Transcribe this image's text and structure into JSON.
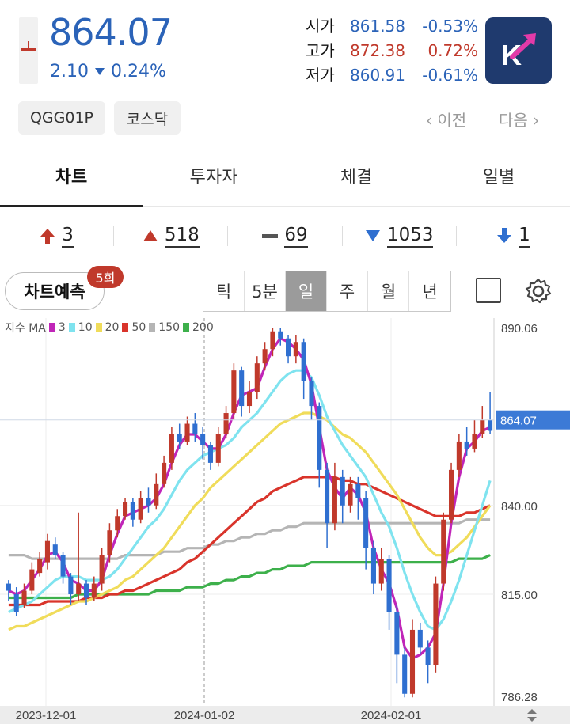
{
  "quote": {
    "price": "864.07",
    "change": "2.10",
    "change_pct": "0.24%",
    "open_label": "시가",
    "open": "861.58",
    "open_pct": "-0.53%",
    "high_label": "고가",
    "high": "872.38",
    "high_pct": "0.72%",
    "low_label": "저가",
    "low": "860.91",
    "low_pct": "-0.61%",
    "logo_letter": "K"
  },
  "tags": {
    "code": "QGG01P",
    "market": "코스닥"
  },
  "nav": {
    "prev": "이전",
    "next": "다음"
  },
  "tabs": [
    "차트",
    "투자자",
    "체결",
    "일별"
  ],
  "stats": {
    "upper_limit": "3",
    "rising": "518",
    "unchanged": "69",
    "falling": "1053",
    "lower_limit": "1"
  },
  "toolbar": {
    "predict_label": "차트예측",
    "predict_badge": "5회",
    "periods": [
      "틱",
      "5분",
      "일",
      "주",
      "월",
      "년"
    ],
    "active_period": "일"
  },
  "legend": {
    "title": "지수 MA",
    "items": [
      {
        "label": "3",
        "color": "#c025b8"
      },
      {
        "label": "10",
        "color": "#7fe3ef"
      },
      {
        "label": "20",
        "color": "#f0dc5a"
      },
      {
        "label": "50",
        "color": "#d9342b"
      },
      {
        "label": "150",
        "color": "#b5b5b5"
      },
      {
        "label": "200",
        "color": "#3db04b"
      }
    ]
  },
  "colors": {
    "up": "#c0392b",
    "down": "#2f6fd0",
    "accent": "#2b63b8",
    "logo_bg": "#1f3a6e",
    "logo_arrow": "#e33aa8"
  },
  "chart_data": {
    "type": "candlestick",
    "y_ticks": [
      "890.06",
      "840.00",
      "815.00",
      "786.28"
    ],
    "current_price_label": "864.07",
    "x_ticks": [
      "2023-12-01",
      "2024-01-02",
      "2024-02-01"
    ],
    "ylim": [
      786.28,
      890.06
    ],
    "candles": [
      [
        818,
        816,
        819,
        813
      ],
      [
        815,
        810,
        817,
        809
      ],
      [
        812,
        816,
        818,
        811
      ],
      [
        816,
        822,
        824,
        815
      ],
      [
        821,
        825,
        827,
        820
      ],
      [
        824,
        830,
        832,
        822
      ],
      [
        829,
        826,
        831,
        825
      ],
      [
        826,
        820,
        827,
        818
      ],
      [
        820,
        815,
        821,
        812
      ],
      [
        815,
        818,
        838,
        813
      ],
      [
        818,
        814,
        819,
        812
      ],
      [
        814,
        818,
        820,
        813
      ],
      [
        818,
        826,
        828,
        816
      ],
      [
        826,
        833,
        835,
        824
      ],
      [
        833,
        837,
        839,
        831
      ],
      [
        837,
        841,
        842,
        836
      ],
      [
        841,
        836,
        842,
        834
      ],
      [
        836,
        842,
        844,
        835
      ],
      [
        842,
        840,
        845,
        838
      ],
      [
        840,
        846,
        849,
        839
      ],
      [
        846,
        852,
        854,
        845
      ],
      [
        852,
        860,
        862,
        850
      ],
      [
        860,
        858,
        863,
        856
      ],
      [
        858,
        863,
        865,
        857
      ],
      [
        863,
        860,
        866,
        858
      ],
      [
        860,
        857,
        862,
        853
      ],
      [
        857,
        852,
        858,
        850
      ],
      [
        852,
        860,
        862,
        851
      ],
      [
        860,
        866,
        868,
        859
      ],
      [
        866,
        878,
        880,
        864
      ],
      [
        878,
        868,
        879,
        865
      ],
      [
        868,
        872,
        875,
        866
      ],
      [
        872,
        880,
        882,
        870
      ],
      [
        880,
        884,
        886,
        878
      ],
      [
        884,
        889,
        890,
        882
      ],
      [
        889,
        887,
        890,
        885
      ],
      [
        887,
        882,
        888,
        880
      ],
      [
        882,
        886,
        888,
        880
      ],
      [
        886,
        875,
        887,
        870
      ],
      [
        875,
        868,
        876,
        864
      ],
      [
        868,
        850,
        869,
        845
      ],
      [
        850,
        835,
        852,
        828
      ],
      [
        835,
        848,
        852,
        833
      ],
      [
        848,
        840,
        850,
        835
      ],
      [
        840,
        846,
        848,
        838
      ],
      [
        846,
        842,
        848,
        836
      ],
      [
        842,
        828,
        844,
        822
      ],
      [
        828,
        818,
        830,
        815
      ],
      [
        818,
        825,
        828,
        816
      ],
      [
        825,
        810,
        826,
        805
      ],
      [
        810,
        798,
        812,
        790
      ],
      [
        798,
        787,
        800,
        786
      ],
      [
        787,
        805,
        808,
        786
      ],
      [
        805,
        800,
        807,
        798
      ],
      [
        800,
        795,
        802,
        790
      ],
      [
        795,
        818,
        820,
        793
      ],
      [
        818,
        836,
        838,
        816
      ],
      [
        836,
        850,
        852,
        835
      ],
      [
        850,
        858,
        860,
        848
      ],
      [
        858,
        856,
        862,
        854
      ],
      [
        856,
        860,
        864,
        855
      ],
      [
        860,
        864,
        868,
        859
      ],
      [
        864,
        861,
        872,
        860
      ]
    ],
    "ma": {
      "3": [
        816,
        815,
        816,
        819,
        822,
        826,
        827,
        824,
        819,
        818,
        816,
        816,
        819,
        826,
        832,
        837,
        838,
        839,
        840,
        842,
        846,
        852,
        857,
        860,
        860,
        858,
        856,
        856,
        860,
        866,
        871,
        872,
        873,
        879,
        884,
        887,
        886,
        884,
        881,
        874,
        862,
        850,
        845,
        842,
        845,
        843,
        838,
        828,
        822,
        818,
        811,
        800,
        797,
        798,
        800,
        804,
        818,
        835,
        848,
        856,
        858,
        861,
        862
      ],
      "10": [
        810,
        811,
        812,
        813,
        815,
        817,
        819,
        820,
        820,
        820,
        819,
        819,
        819,
        820,
        822,
        825,
        828,
        831,
        834,
        836,
        839,
        843,
        847,
        850,
        852,
        854,
        855,
        856,
        857,
        859,
        862,
        864,
        866,
        869,
        872,
        875,
        877,
        878,
        878,
        876,
        871,
        865,
        861,
        857,
        854,
        851,
        848,
        843,
        838,
        834,
        828,
        821,
        815,
        810,
        806,
        805,
        808,
        813,
        819,
        826,
        833,
        840,
        847
      ],
      "20": [
        805,
        806,
        806,
        807,
        808,
        809,
        810,
        811,
        812,
        813,
        813,
        814,
        815,
        816,
        817,
        819,
        820,
        822,
        824,
        826,
        828,
        831,
        834,
        837,
        840,
        842,
        845,
        847,
        849,
        851,
        853,
        855,
        857,
        859,
        861,
        863,
        864,
        865,
        866,
        866,
        865,
        864,
        862,
        860,
        859,
        857,
        855,
        852,
        849,
        846,
        843,
        839,
        835,
        831,
        828,
        826,
        826,
        827,
        829,
        831,
        834,
        837,
        840
      ],
      "50": [
        812,
        812,
        812,
        812,
        812,
        813,
        813,
        813,
        813,
        813,
        814,
        814,
        814,
        815,
        815,
        816,
        816,
        817,
        818,
        819,
        820,
        821,
        822,
        824,
        825,
        827,
        829,
        831,
        833,
        835,
        837,
        839,
        841,
        842,
        844,
        845,
        846,
        847,
        848,
        848,
        848,
        848,
        848,
        847,
        847,
        846,
        846,
        845,
        844,
        843,
        842,
        841,
        840,
        839,
        838,
        837,
        837,
        837,
        837,
        838,
        838,
        839,
        840
      ],
      "150": [
        826,
        826,
        826,
        825,
        825,
        825,
        825,
        825,
        825,
        825,
        825,
        825,
        825,
        825,
        825,
        826,
        826,
        826,
        826,
        826,
        827,
        827,
        827,
        828,
        828,
        828,
        829,
        829,
        830,
        830,
        831,
        831,
        832,
        832,
        833,
        833,
        834,
        834,
        835,
        835,
        835,
        835,
        835,
        835,
        835,
        835,
        835,
        835,
        835,
        835,
        835,
        835,
        835,
        835,
        835,
        835,
        835,
        835,
        835,
        836,
        836,
        836,
        836
      ],
      "200": [
        814,
        814,
        814,
        814,
        814,
        814,
        814,
        814,
        814,
        815,
        815,
        815,
        815,
        815,
        815,
        815,
        815,
        815,
        815,
        816,
        816,
        816,
        816,
        817,
        817,
        817,
        818,
        818,
        819,
        819,
        820,
        820,
        821,
        821,
        822,
        822,
        823,
        823,
        823,
        824,
        824,
        824,
        824,
        824,
        824,
        824,
        824,
        824,
        824,
        824,
        824,
        824,
        824,
        824,
        824,
        824,
        824,
        824,
        825,
        825,
        825,
        825,
        826
      ]
    }
  }
}
